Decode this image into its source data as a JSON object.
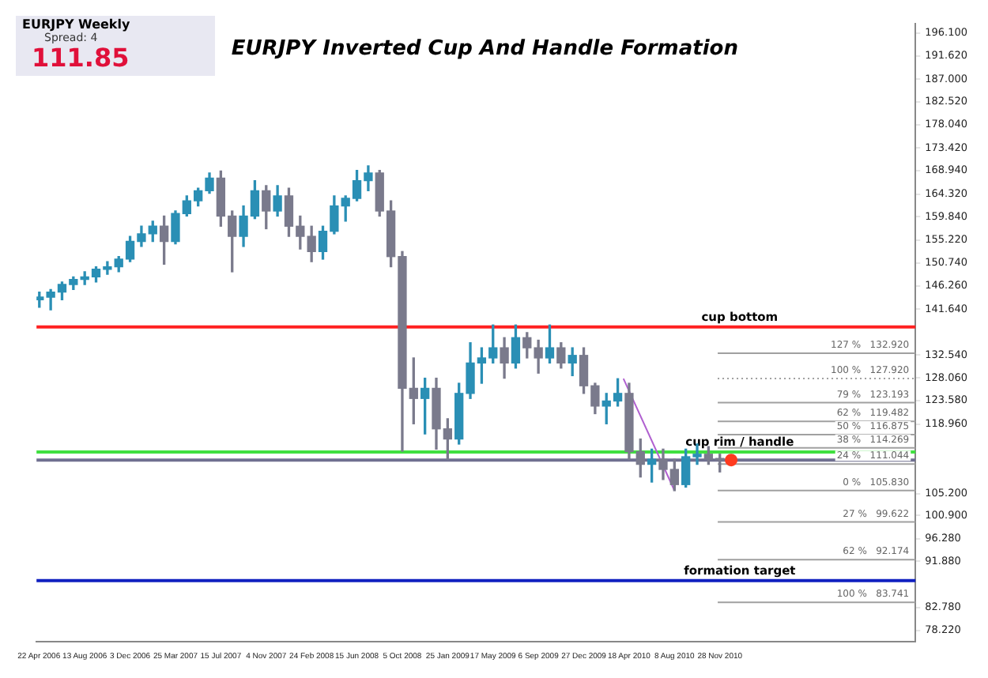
{
  "chart_data": {
    "type": "candlestick",
    "title": "EURJPY Inverted Cup And Handle Formation",
    "annotations": [
      "EURJPY   Weekly",
      "Spread: 4",
      "111.85"
    ],
    "xlim": [
      "2006-04-16",
      "2012-03-25"
    ],
    "xticks": [
      {
        "value": "2006-04-22",
        "label": "22 Apr 2006"
      },
      {
        "value": "2006-08-13",
        "label": "13 Aug 2006"
      },
      {
        "value": "2006-12-03",
        "label": "3 Dec 2006"
      },
      {
        "value": "2007-03-25",
        "label": "25 Mar 2007"
      },
      {
        "value": "2007-07-15",
        "label": "15 Jul 2007"
      },
      {
        "value": "2007-11-04",
        "label": "4 Nov 2007"
      },
      {
        "value": "2008-02-24",
        "label": "24 Feb 2008"
      },
      {
        "value": "2008-06-15",
        "label": "15 Jun 2008"
      },
      {
        "value": "2008-10-05",
        "label": "5 Oct 2008"
      },
      {
        "value": "2009-01-25",
        "label": "25 Jan 2009"
      },
      {
        "value": "2009-05-17",
        "label": "17 May 2009"
      },
      {
        "value": "2009-09-06",
        "label": "6 Sep 2009"
      },
      {
        "value": "2009-12-27",
        "label": "27 Dec 2009"
      },
      {
        "value": "2010-04-18",
        "label": "18 Apr 2010"
      },
      {
        "value": "2010-08-08",
        "label": "8 Aug 2010"
      },
      {
        "value": "2010-11-28",
        "label": "28 Nov 2010"
      }
    ],
    "ylim": [
      76,
      198
    ],
    "yticks": [
      {
        "value": 196.1,
        "label": "196.100"
      },
      {
        "value": 191.62,
        "label": "191.620"
      },
      {
        "value": 187,
        "label": "187.000"
      },
      {
        "value": 182.52,
        "label": "182.520"
      },
      {
        "value": 178.04,
        "label": "178.040"
      },
      {
        "value": 173.42,
        "label": "173.420"
      },
      {
        "value": 168.94,
        "label": "168.940"
      },
      {
        "value": 164.32,
        "label": "164.320"
      },
      {
        "value": 159.84,
        "label": "159.840"
      },
      {
        "value": 155.22,
        "label": "155.220"
      },
      {
        "value": 150.74,
        "label": "150.740"
      },
      {
        "value": 146.26,
        "label": "146.260"
      },
      {
        "value": 141.64,
        "label": "141.640"
      },
      {
        "value": 132.54,
        "label": "132.540"
      },
      {
        "value": 128.06,
        "label": "128.060"
      },
      {
        "value": 123.58,
        "label": "123.580"
      },
      {
        "value": 118.96,
        "label": "118.960"
      },
      {
        "value": 105.2,
        "label": "105.200"
      },
      {
        "value": 100.9,
        "label": "100.900"
      },
      {
        "value": 96.28,
        "label": "96.280"
      },
      {
        "value": 91.88,
        "label": "91.880"
      },
      {
        "value": 82.78,
        "label": "82.780"
      },
      {
        "value": 78.22,
        "label": "78.220"
      }
    ],
    "ref_lines": [
      {
        "axis": "y",
        "value": 138.12,
        "label": "cup bottom",
        "color": "#ff2020"
      },
      {
        "axis": "y",
        "value": 113.45,
        "label": "cup rim / handle",
        "color": "#40e040"
      },
      {
        "axis": "y",
        "value": 111.85,
        "label": null,
        "color": "#707090"
      },
      {
        "axis": "y",
        "value": 88.04,
        "label": "formation target",
        "color": "#1020c0"
      },
      {
        "axis": "y",
        "value": 132.92,
        "label": "127 %   132.920",
        "color": "#a0a0a0"
      },
      {
        "axis": "y",
        "value": 127.92,
        "label": "100 %   127.920",
        "color": "#a0a0a0",
        "line_style": "dotted"
      },
      {
        "axis": "y",
        "value": 123.193,
        "label": "79 %   123.193",
        "color": "#a0a0a0"
      },
      {
        "axis": "y",
        "value": 119.482,
        "label": "62 %   119.482",
        "color": "#a0a0a0"
      },
      {
        "axis": "y",
        "value": 116.875,
        "label": "50 %   116.875",
        "color": "#a0a0a0"
      },
      {
        "axis": "y",
        "value": 114.269,
        "label": "38 %   114.269",
        "color": "#a0a0a0"
      },
      {
        "axis": "y",
        "value": 111.044,
        "label": "24 %   111.044",
        "color": "#a0a0a0"
      },
      {
        "axis": "y",
        "value": 105.83,
        "label": "0 %   105.830",
        "color": "#a0a0a0"
      },
      {
        "axis": "y",
        "value": 99.622,
        "label": "27 %   99.622",
        "color": "#a0a0a0"
      },
      {
        "axis": "y",
        "value": 92.174,
        "label": "62 %   92.174",
        "color": "#a0a0a0"
      },
      {
        "axis": "y",
        "value": 83.741,
        "label": "100 %   83.741",
        "color": "#a0a0a0"
      }
    ],
    "legend": false,
    "grid": false,
    "series": [
      {
        "type": "candlestick",
        "colors": [
          "#2a8fb5",
          "#2a8fb5",
          "#2a8fb5",
          "#2a8fb5",
          "#2a8fb5",
          "#2a8fb5",
          "#2a8fb5",
          "#2a8fb5",
          "#2a8fb5",
          "#2a8fb5",
          "#2a8fb5",
          "#7a7a8c",
          "#2a8fb5",
          "#2a8fb5",
          "#2a8fb5",
          "#2a8fb5",
          "#7a7a8c",
          "#7a7a8c",
          "#2a8fb5",
          "#2a8fb5",
          "#7a7a8c",
          "#2a8fb5",
          "#7a7a8c",
          "#7a7a8c",
          "#7a7a8c",
          "#2a8fb5",
          "#2a8fb5",
          "#2a8fb5",
          "#2a8fb5",
          "#2a8fb5",
          "#7a7a8c",
          "#7a7a8c",
          "#7a7a8c",
          "#7a7a8c",
          "#2a8fb5",
          "#7a7a8c",
          "#7a7a8c",
          "#2a8fb5",
          "#2a8fb5",
          "#2a8fb5",
          "#2a8fb5",
          "#7a7a8c",
          "#2a8fb5",
          "#7a7a8c",
          "#7a7a8c",
          "#2a8fb5",
          "#7a7a8c",
          "#2a8fb5",
          "#7a7a8c",
          "#7a7a8c",
          "#2a8fb5",
          "#2a8fb5",
          "#7a7a8c",
          "#7a7a8c",
          "#2a8fb5",
          "#7a7a8c",
          "#7a7a8c",
          "#2a8fb5",
          "#2a8fb5",
          "#7a7a8c",
          "#7a7a8c"
        ],
        "x": [
          "2006-04-23",
          "2006-05-21",
          "2006-06-18",
          "2006-07-16",
          "2006-08-13",
          "2006-09-10",
          "2006-10-08",
          "2006-11-05",
          "2006-12-03",
          "2006-12-31",
          "2007-01-28",
          "2007-02-25",
          "2007-03-25",
          "2007-04-22",
          "2007-05-20",
          "2007-06-17",
          "2007-07-15",
          "2007-08-12",
          "2007-09-09",
          "2007-10-07",
          "2007-11-04",
          "2007-12-02",
          "2007-12-30",
          "2008-01-27",
          "2008-02-24",
          "2008-03-23",
          "2008-04-20",
          "2008-05-18",
          "2008-06-15",
          "2008-07-13",
          "2008-08-10",
          "2008-09-07",
          "2008-10-05",
          "2008-11-02",
          "2008-11-30",
          "2008-12-28",
          "2009-01-25",
          "2009-02-22",
          "2009-03-22",
          "2009-04-19",
          "2009-05-17",
          "2009-06-14",
          "2009-07-12",
          "2009-08-09",
          "2009-09-06",
          "2009-10-04",
          "2009-11-01",
          "2009-11-29",
          "2009-12-27",
          "2010-01-24",
          "2010-02-21",
          "2010-03-21",
          "2010-04-18",
          "2010-05-16",
          "2010-06-13",
          "2010-07-11",
          "2010-08-08",
          "2010-09-05",
          "2010-10-03",
          "2010-10-31",
          "2010-11-28"
        ],
        "ohlc": [
          [
            143.5,
            145,
            142,
            144
          ],
          [
            144,
            145.5,
            141.5,
            145
          ],
          [
            145,
            147,
            143.5,
            146.5
          ],
          [
            146.5,
            148,
            145.5,
            147.5
          ],
          [
            147.5,
            149,
            146.5,
            148
          ],
          [
            148,
            150,
            147,
            149.5
          ],
          [
            149.5,
            151,
            148.5,
            150
          ],
          [
            150,
            152,
            149,
            151.5
          ],
          [
            151.5,
            156,
            151,
            155
          ],
          [
            155,
            158,
            154,
            156.5
          ],
          [
            156.5,
            159,
            155,
            158
          ],
          [
            158,
            160,
            150.5,
            155
          ],
          [
            155,
            161,
            154.5,
            160.5
          ],
          [
            160.5,
            164,
            160,
            163
          ],
          [
            163,
            165.5,
            162,
            165
          ],
          [
            165,
            168.5,
            164.5,
            167.5
          ],
          [
            167.5,
            168.9,
            158,
            160
          ],
          [
            160,
            161,
            149,
            156
          ],
          [
            156,
            162,
            154,
            160
          ],
          [
            160,
            167,
            159.5,
            165
          ],
          [
            165,
            166,
            157.5,
            161
          ],
          [
            161,
            166,
            160,
            164
          ],
          [
            164,
            165.5,
            156,
            158
          ],
          [
            158,
            160,
            153.5,
            156
          ],
          [
            156,
            158,
            151,
            153
          ],
          [
            153,
            158,
            151.5,
            157
          ],
          [
            157,
            164,
            156.5,
            162
          ],
          [
            162,
            164,
            159,
            163.5
          ],
          [
            163.5,
            169,
            163,
            167
          ],
          [
            167,
            169.9,
            165,
            168.5
          ],
          [
            168.5,
            169,
            160,
            161
          ],
          [
            161,
            163,
            150,
            152
          ],
          [
            152,
            153,
            113.6,
            126
          ],
          [
            126,
            132,
            119,
            124
          ],
          [
            124,
            128,
            117,
            126
          ],
          [
            126,
            128,
            114,
            118
          ],
          [
            118,
            120,
            112,
            116
          ],
          [
            116,
            127,
            115,
            125
          ],
          [
            125,
            135,
            124,
            131
          ],
          [
            131,
            134,
            127,
            132
          ],
          [
            132,
            138.5,
            131,
            134
          ],
          [
            134,
            136,
            128,
            131
          ],
          [
            131,
            138.5,
            130,
            136
          ],
          [
            136,
            137,
            132,
            134
          ],
          [
            134,
            135.5,
            129,
            132
          ],
          [
            132,
            138.5,
            131,
            134
          ],
          [
            134,
            135,
            130,
            131
          ],
          [
            131,
            134,
            128.5,
            132.5
          ],
          [
            132.5,
            134,
            125,
            126.5
          ],
          [
            126.5,
            127,
            121,
            122.5
          ],
          [
            122.5,
            125,
            119,
            123.5
          ],
          [
            123.5,
            127.9,
            122.5,
            125
          ],
          [
            125,
            127,
            112,
            113.5
          ],
          [
            113.5,
            116,
            108.5,
            111
          ],
          [
            111,
            114,
            107.5,
            112
          ],
          [
            112,
            114,
            108,
            110
          ],
          [
            110,
            112,
            105.8,
            107
          ],
          [
            107,
            114,
            106.5,
            112.5
          ],
          [
            112.5,
            115,
            111,
            113
          ],
          [
            113,
            114.5,
            111,
            112
          ],
          [
            112,
            113,
            109.5,
            111.85
          ]
        ]
      },
      {
        "type": "line",
        "x": [
          "2010-04-04",
          "2010-08-08"
        ],
        "values": [
          127.92,
          105.83
        ],
        "color": "#b060d0",
        "marker": "none"
      },
      {
        "type": "scatter",
        "x": [
          "2010-12-26"
        ],
        "values": [
          111.85
        ],
        "color": "#ff3b1f",
        "marker": "circle"
      }
    ]
  }
}
